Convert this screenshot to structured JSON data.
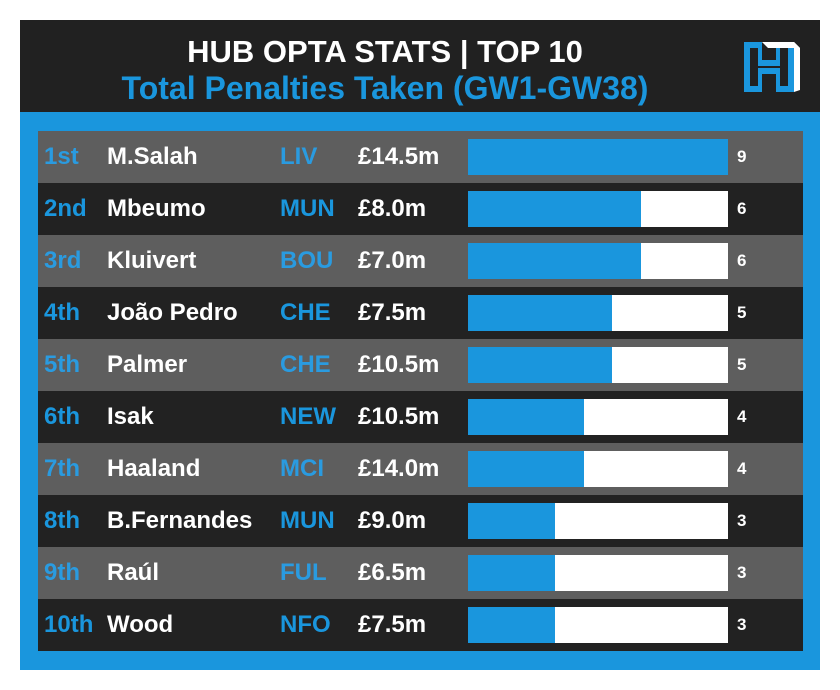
{
  "header": {
    "title": "HUB OPTA STATS | TOP 10",
    "subtitle": "Total Penalties Taken (GW1-GW38)",
    "logo_icon": "hub-logo-icon"
  },
  "colors": {
    "accent": "#1a96dd",
    "header_bg": "#212121",
    "row_light": "#5e5e5e",
    "row_dark": "#222222"
  },
  "chart_data": {
    "type": "bar",
    "title": "Total Penalties Taken (GW1-GW38)",
    "xlim": [
      0,
      9
    ],
    "rows": [
      {
        "rank": "1st",
        "player": "M.Salah",
        "team": "LIV",
        "price": "£14.5m",
        "value": 9
      },
      {
        "rank": "2nd",
        "player": "Mbeumo",
        "team": "MUN",
        "price": "£8.0m",
        "value": 6
      },
      {
        "rank": "3rd",
        "player": "Kluivert",
        "team": "BOU",
        "price": "£7.0m",
        "value": 6
      },
      {
        "rank": "4th",
        "player": "João Pedro",
        "team": "CHE",
        "price": "£7.5m",
        "value": 5
      },
      {
        "rank": "5th",
        "player": "Palmer",
        "team": "CHE",
        "price": "£10.5m",
        "value": 5
      },
      {
        "rank": "6th",
        "player": "Isak",
        "team": "NEW",
        "price": "£10.5m",
        "value": 4
      },
      {
        "rank": "7th",
        "player": "Haaland",
        "team": "MCI",
        "price": "£14.0m",
        "value": 4
      },
      {
        "rank": "8th",
        "player": "B.Fernandes",
        "team": "MUN",
        "price": "£9.0m",
        "value": 3
      },
      {
        "rank": "9th",
        "player": "Raúl",
        "team": "FUL",
        "price": "£6.5m",
        "value": 3
      },
      {
        "rank": "10th",
        "player": "Wood",
        "team": "NFO",
        "price": "£7.5m",
        "value": 3
      }
    ]
  }
}
